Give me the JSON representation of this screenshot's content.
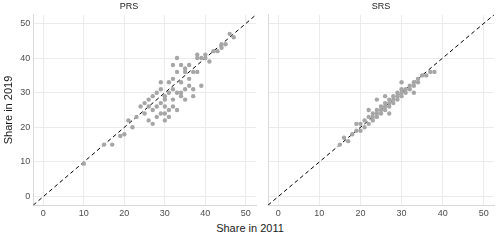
{
  "chart_data": [
    {
      "type": "scatter",
      "title": "PRS",
      "x_label": "Share in 2011",
      "y_label": "Share in 2019",
      "xlim": [
        -2.5,
        52.5
      ],
      "ylim": [
        -2.5,
        52.5
      ],
      "xticks": [
        0,
        10,
        20,
        30,
        40,
        50
      ],
      "yticks": [
        0,
        10,
        20,
        30,
        40,
        50
      ],
      "grid": true,
      "series": [
        {
          "type": "scatter",
          "color": "#a6a6a6",
          "x": [
            10,
            15,
            17,
            19,
            20,
            21,
            22,
            23,
            24,
            25,
            25,
            26,
            26,
            27,
            27,
            27,
            28,
            28,
            28,
            29,
            29,
            29,
            30,
            30,
            30,
            30,
            31,
            31,
            31,
            32,
            32,
            32,
            32,
            33,
            33,
            33,
            33,
            34,
            34,
            34,
            35,
            35,
            35,
            36,
            36,
            37,
            37,
            37,
            38,
            38,
            38,
            39,
            39,
            40,
            40,
            41,
            42,
            43,
            44,
            44,
            45,
            46,
            47,
            36,
            31,
            29,
            32,
            34,
            30,
            35,
            26
          ],
          "y": [
            9.5,
            15,
            15,
            17.5,
            18,
            22,
            20,
            23,
            26,
            27,
            24,
            26,
            22,
            25,
            29,
            21,
            26,
            30,
            23,
            27,
            24,
            31,
            28,
            29,
            22,
            26,
            30,
            25,
            33,
            34,
            28,
            26,
            31,
            40,
            36,
            30,
            25,
            30,
            33,
            29,
            31,
            28,
            37,
            32,
            34,
            29,
            31,
            36,
            40,
            41,
            36,
            40,
            32,
            41,
            40,
            39,
            42,
            42,
            43,
            44,
            44,
            47,
            46,
            38,
            23,
            33,
            38,
            38,
            24,
            36,
            28
          ]
        },
        {
          "type": "line",
          "line_style": "dashed",
          "color": "#000000",
          "x": [
            -2.5,
            52.5
          ],
          "y": [
            -2.5,
            52.5
          ]
        }
      ]
    },
    {
      "type": "scatter",
      "title": "SRS",
      "xlim": [
        -2.5,
        52.5
      ],
      "ylim": [
        -2.5,
        52.5
      ],
      "xticks": [
        0,
        10,
        20,
        30,
        40,
        50
      ],
      "yticks": [
        0,
        10,
        20,
        30,
        40,
        50
      ],
      "grid": true,
      "tick_labels": "x",
      "series": [
        {
          "type": "scatter",
          "color": "#a6a6a6",
          "x": [
            15,
            16,
            17,
            18,
            19,
            20,
            20,
            21,
            21,
            22,
            22,
            23,
            23,
            23,
            24,
            24,
            24,
            25,
            25,
            25,
            26,
            26,
            26,
            27,
            27,
            27,
            28,
            28,
            28,
            29,
            29,
            29,
            30,
            30,
            30,
            31,
            31,
            32,
            32,
            33,
            33,
            34,
            34,
            35,
            36,
            37,
            38,
            22,
            26,
            30,
            33,
            24,
            27,
            19
          ],
          "y": [
            15,
            17,
            16,
            18,
            19,
            19,
            21,
            20,
            22,
            21,
            23,
            22,
            24,
            23,
            24,
            23,
            25,
            24,
            25,
            26,
            25,
            26,
            27,
            26,
            27,
            28,
            27,
            28,
            29,
            29,
            28,
            30,
            30,
            29,
            31,
            31,
            30,
            32,
            31,
            33,
            32,
            34,
            33,
            35,
            35,
            36,
            36,
            25,
            29,
            33,
            30,
            28,
            24,
            21
          ]
        },
        {
          "type": "line",
          "line_style": "dashed",
          "color": "#000000",
          "x": [
            -2.5,
            52.5
          ],
          "y": [
            -2.5,
            52.5
          ]
        }
      ]
    }
  ]
}
